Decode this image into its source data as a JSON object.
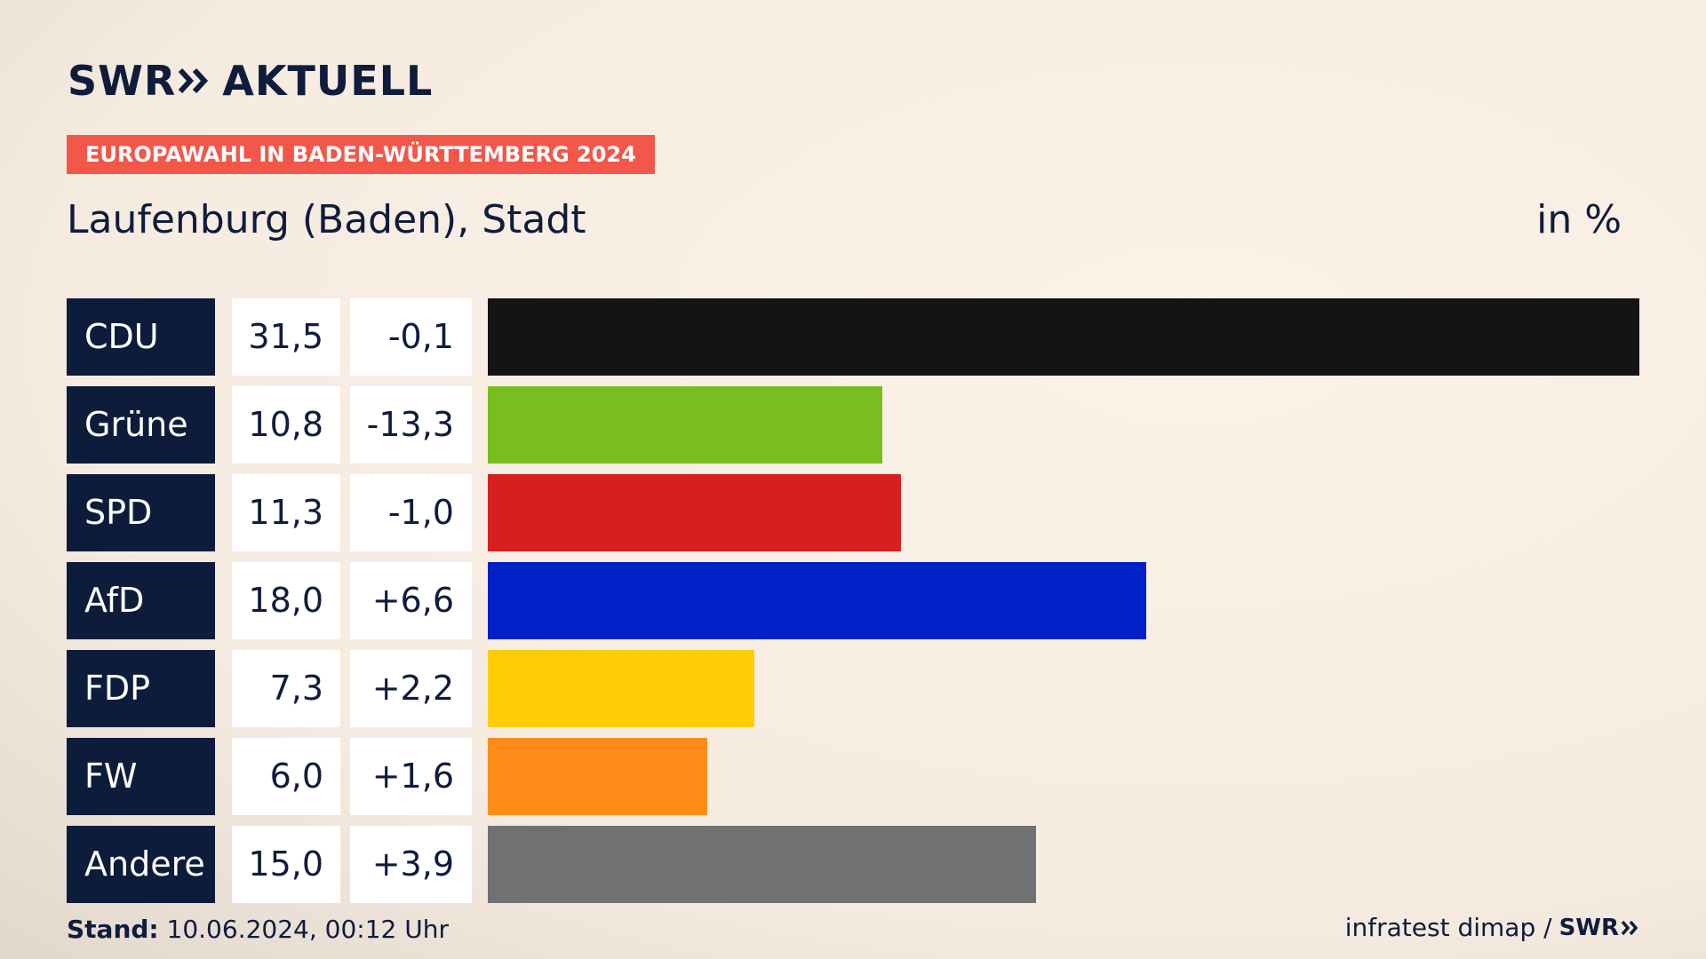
{
  "brand": {
    "logo_left": "SWR",
    "logo_right": "AKTUELL",
    "footer_logo": "SWR",
    "color_navy": "#0f1c3c",
    "color_tag": "#f2574a"
  },
  "tag": "EUROPAWAHL IN BADEN-WÜRTTEMBERG 2024",
  "subtitle": "Laufenburg (Baden), Stadt",
  "unit": "in %",
  "footer": {
    "stand_label": "Stand:",
    "stand_value": "10.06.2024, 00:12 Uhr",
    "source": "infratest dimap /"
  },
  "chart_data": {
    "type": "bar",
    "orientation": "horizontal",
    "categories": [
      "CDU",
      "Grüne",
      "SPD",
      "AfD",
      "FDP",
      "FW",
      "Andere"
    ],
    "values": [
      31.5,
      10.8,
      11.3,
      18.0,
      7.3,
      6.0,
      15.0
    ],
    "value_labels": [
      "31,5",
      "10,8",
      "11,3",
      "18,0",
      "7,3",
      "6,0",
      "15,0"
    ],
    "change_labels": [
      "-0,1",
      "-13,3",
      "-1,0",
      "+6,6",
      "+2,2",
      "+1,6",
      "+3,9"
    ],
    "changes": [
      -0.1,
      -13.3,
      -1.0,
      6.6,
      2.2,
      1.6,
      3.9
    ],
    "colors": [
      "#141414",
      "#78be1e",
      "#d71f1f",
      "#0021c8",
      "#ffcc08",
      "#ff8c19",
      "#707172"
    ],
    "xlim": [
      0,
      31.5
    ],
    "grid": false,
    "legend": "none"
  }
}
